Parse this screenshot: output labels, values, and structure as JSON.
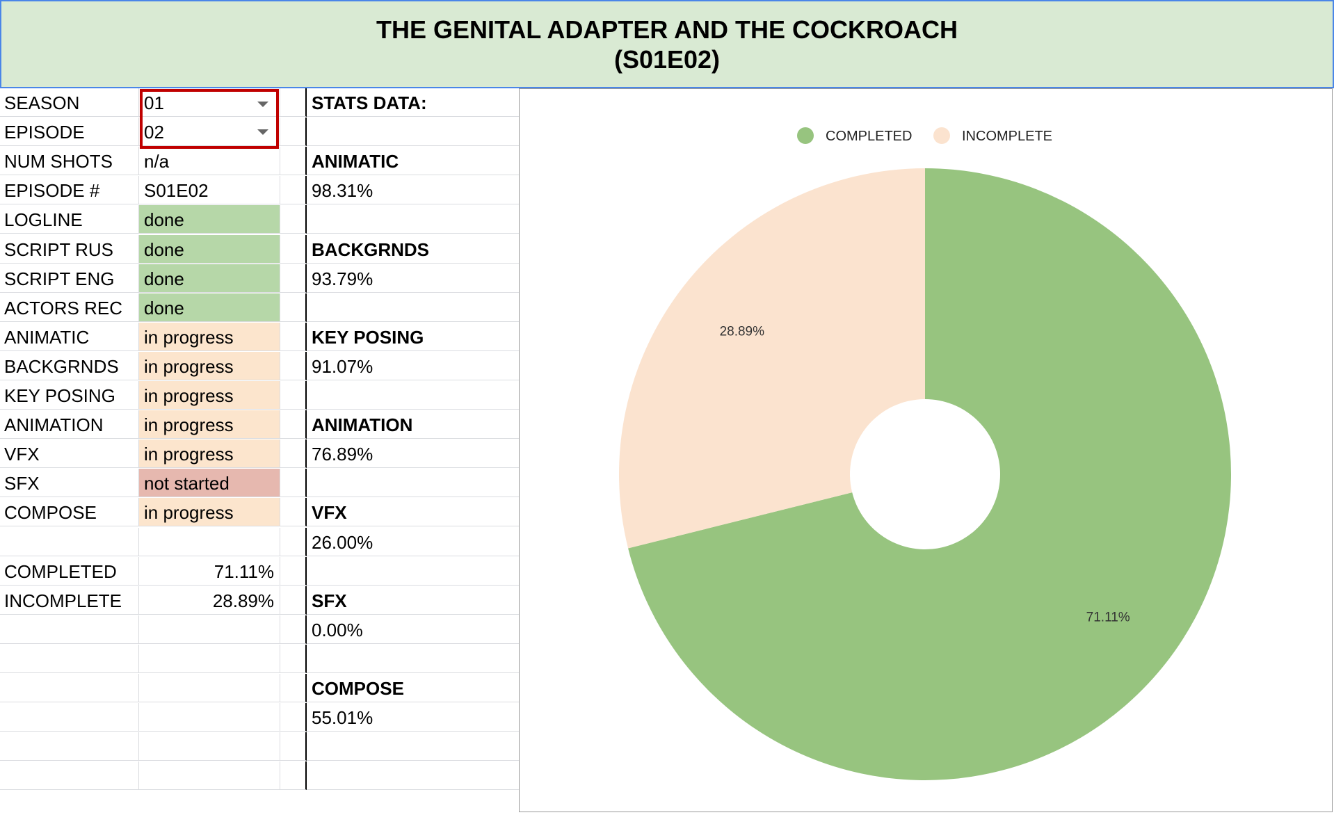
{
  "title": {
    "line1": "THE GENITAL ADAPTER AND THE COCKROACH",
    "line2": "(S01E02)"
  },
  "left_table": [
    {
      "label": "SEASON",
      "value": "01",
      "status": "dropdown"
    },
    {
      "label": "EPISODE",
      "value": "02",
      "status": "dropdown"
    },
    {
      "label": "NUM SHOTS",
      "value": "n/a",
      "status": "plain"
    },
    {
      "label": "EPISODE #",
      "value": "S01E02",
      "status": "plain"
    },
    {
      "label": "LOGLINE",
      "value": "done",
      "status": "done"
    },
    {
      "label": "SCRIPT RUS",
      "value": "done",
      "status": "done"
    },
    {
      "label": "SCRIPT ENG",
      "value": "done",
      "status": "done"
    },
    {
      "label": "ACTORS REC",
      "value": "done",
      "status": "done"
    },
    {
      "label": "ANIMATIC",
      "value": "in progress",
      "status": "progress"
    },
    {
      "label": "BACKGRNDS",
      "value": "in progress",
      "status": "progress"
    },
    {
      "label": "KEY POSING",
      "value": "in progress",
      "status": "progress"
    },
    {
      "label": "ANIMATION",
      "value": "in progress",
      "status": "progress"
    },
    {
      "label": "VFX",
      "value": "in progress",
      "status": "progress"
    },
    {
      "label": "SFX",
      "value": "not started",
      "status": "notstarted"
    },
    {
      "label": "COMPOSE",
      "value": "in progress",
      "status": "progress"
    },
    {
      "label": "",
      "value": "",
      "status": "plain"
    },
    {
      "label": "COMPLETED",
      "value": "71.11%",
      "status": "right"
    },
    {
      "label": "INCOMPLETE",
      "value": "28.89%",
      "status": "right"
    },
    {
      "label": "",
      "value": "",
      "status": "plain"
    },
    {
      "label": "",
      "value": "",
      "status": "plain"
    },
    {
      "label": "",
      "value": "",
      "status": "plain"
    },
    {
      "label": "",
      "value": "",
      "status": "plain"
    },
    {
      "label": "",
      "value": "",
      "status": "plain"
    },
    {
      "label": "",
      "value": "",
      "status": "plain"
    }
  ],
  "stats_column": [
    {
      "text": "STATS DATA:",
      "bold": true
    },
    {
      "text": "",
      "bold": false
    },
    {
      "text": "ANIMATIC",
      "bold": true
    },
    {
      "text": "98.31%",
      "bold": false
    },
    {
      "text": "",
      "bold": false
    },
    {
      "text": "BACKGRNDS",
      "bold": true
    },
    {
      "text": "93.79%",
      "bold": false
    },
    {
      "text": "",
      "bold": false
    },
    {
      "text": "KEY POSING",
      "bold": true
    },
    {
      "text": "91.07%",
      "bold": false
    },
    {
      "text": "",
      "bold": false
    },
    {
      "text": "ANIMATION",
      "bold": true
    },
    {
      "text": "76.89%",
      "bold": false
    },
    {
      "text": "",
      "bold": false
    },
    {
      "text": "VFX",
      "bold": true
    },
    {
      "text": "26.00%",
      "bold": false
    },
    {
      "text": "",
      "bold": false
    },
    {
      "text": "SFX",
      "bold": true
    },
    {
      "text": "0.00%",
      "bold": false
    },
    {
      "text": "",
      "bold": false
    },
    {
      "text": "COMPOSE",
      "bold": true
    },
    {
      "text": "55.01%",
      "bold": false
    },
    {
      "text": "",
      "bold": false
    },
    {
      "text": "",
      "bold": false
    }
  ],
  "colors": {
    "header_bg": "#d9ead3",
    "done": "#b6d7a8",
    "in_progress": "#fce5cd",
    "not_started": "#e6b8af",
    "completed_slice": "#97c47f",
    "incomplete_slice": "#fbe3cf",
    "dropdown_highlight": "#c00000"
  },
  "chart_data": {
    "type": "pie",
    "donut": true,
    "legend_position": "top",
    "series": [
      {
        "name": "COMPLETED",
        "value": 71.11,
        "label": "71.11%",
        "color": "#97c47f"
      },
      {
        "name": "INCOMPLETE",
        "value": 28.89,
        "label": "28.89%",
        "color": "#fbe3cf"
      }
    ]
  }
}
